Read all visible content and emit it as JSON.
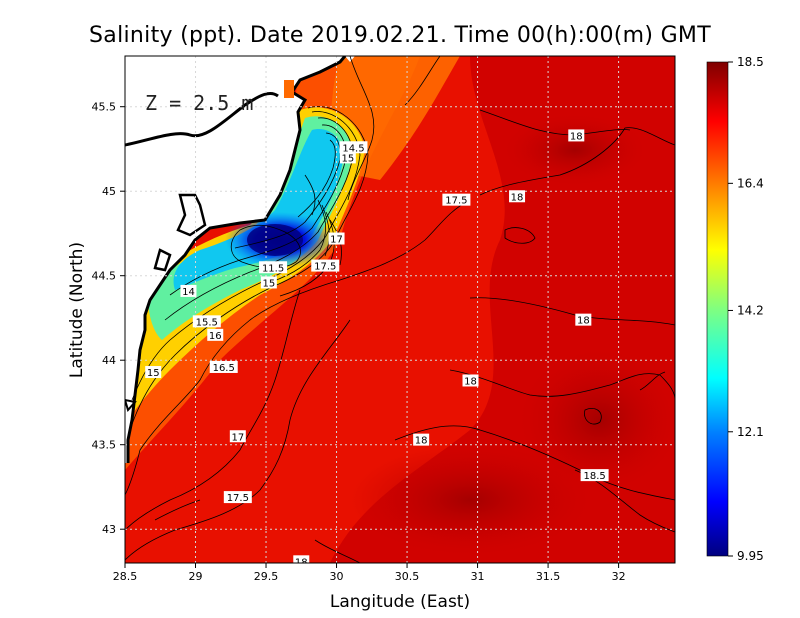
{
  "chart_data": {
    "type": "heatmap",
    "title": "Salinity (ppt). Date 2019.02.21. Time 00(h):00(m) GMT",
    "xlabel": "Langitude (East)",
    "ylabel": "Latitude (North)",
    "depth_label": "Z = 2.5 m",
    "xlim": [
      28.5,
      32.4
    ],
    "ylim": [
      42.8,
      45.8
    ],
    "x_ticks": [
      "28.5",
      "29",
      "29.5",
      "30",
      "30.5",
      "31",
      "31.5",
      "32"
    ],
    "x_tick_values": [
      28.5,
      29,
      29.5,
      30,
      30.5,
      31,
      31.5,
      32
    ],
    "y_ticks": [
      "43",
      "43.5",
      "44",
      "44.5",
      "45",
      "45.5"
    ],
    "y_tick_values": [
      43,
      43.5,
      44,
      44.5,
      45,
      45.5
    ],
    "grid": true,
    "colorbar": {
      "min": 9.95,
      "max": 18.5,
      "tick_labels": [
        "18.5",
        "16.4",
        "14.2",
        "12.1",
        "9.95"
      ],
      "tick_values": [
        18.5,
        16.4,
        14.2,
        12.1,
        9.95
      ],
      "colormap": [
        "#00007f",
        "#0000ff",
        "#007fff",
        "#00ffff",
        "#7fff7f",
        "#ffff00",
        "#ff7f00",
        "#ff0000",
        "#7f0000"
      ]
    },
    "contour_labels": [
      {
        "text": "18",
        "lon": 31.7,
        "lat": 45.33
      },
      {
        "text": "17.5",
        "lon": 30.85,
        "lat": 44.95
      },
      {
        "text": "18",
        "lon": 31.28,
        "lat": 44.97
      },
      {
        "text": "14.5",
        "lon": 30.12,
        "lat": 45.26
      },
      {
        "text": "15",
        "lon": 30.08,
        "lat": 45.2
      },
      {
        "text": "17",
        "lon": 30.0,
        "lat": 44.72
      },
      {
        "text": "17.5",
        "lon": 29.92,
        "lat": 44.56
      },
      {
        "text": "11.5",
        "lon": 29.55,
        "lat": 44.55
      },
      {
        "text": "14",
        "lon": 28.95,
        "lat": 44.41
      },
      {
        "text": "15",
        "lon": 29.52,
        "lat": 44.46
      },
      {
        "text": "15.5",
        "lon": 29.08,
        "lat": 44.23
      },
      {
        "text": "16",
        "lon": 29.14,
        "lat": 44.15
      },
      {
        "text": "18",
        "lon": 31.75,
        "lat": 44.24
      },
      {
        "text": "16.5",
        "lon": 29.2,
        "lat": 43.96
      },
      {
        "text": "15",
        "lon": 28.7,
        "lat": 43.93
      },
      {
        "text": "18",
        "lon": 30.95,
        "lat": 43.88
      },
      {
        "text": "17",
        "lon": 29.3,
        "lat": 43.55
      },
      {
        "text": "18",
        "lon": 30.6,
        "lat": 43.53
      },
      {
        "text": "18.5",
        "lon": 31.83,
        "lat": 43.32
      },
      {
        "text": "17.5",
        "lon": 29.3,
        "lat": 43.19
      },
      {
        "text": "18",
        "lon": 29.75,
        "lat": 42.81
      }
    ]
  }
}
